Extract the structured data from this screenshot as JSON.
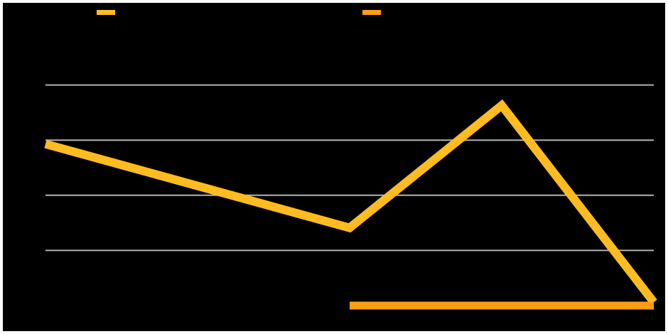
{
  "chart_data": {
    "type": "line",
    "x": [
      0,
      1,
      2,
      3,
      4
    ],
    "ylim": [
      0,
      5
    ],
    "grid": true,
    "legend_position": "top",
    "series": [
      {
        "values": [
          2.93,
          null,
          1.41,
          3.63,
          0.06
        ],
        "color": "#FFBC20"
      },
      {
        "values": [
          null,
          null,
          0.0,
          null,
          0.0
        ],
        "color": "#FF9E14"
      }
    ]
  },
  "colors": {
    "background": "#000000",
    "border": "#FFFFFF",
    "grid": "#B3B3B3"
  }
}
